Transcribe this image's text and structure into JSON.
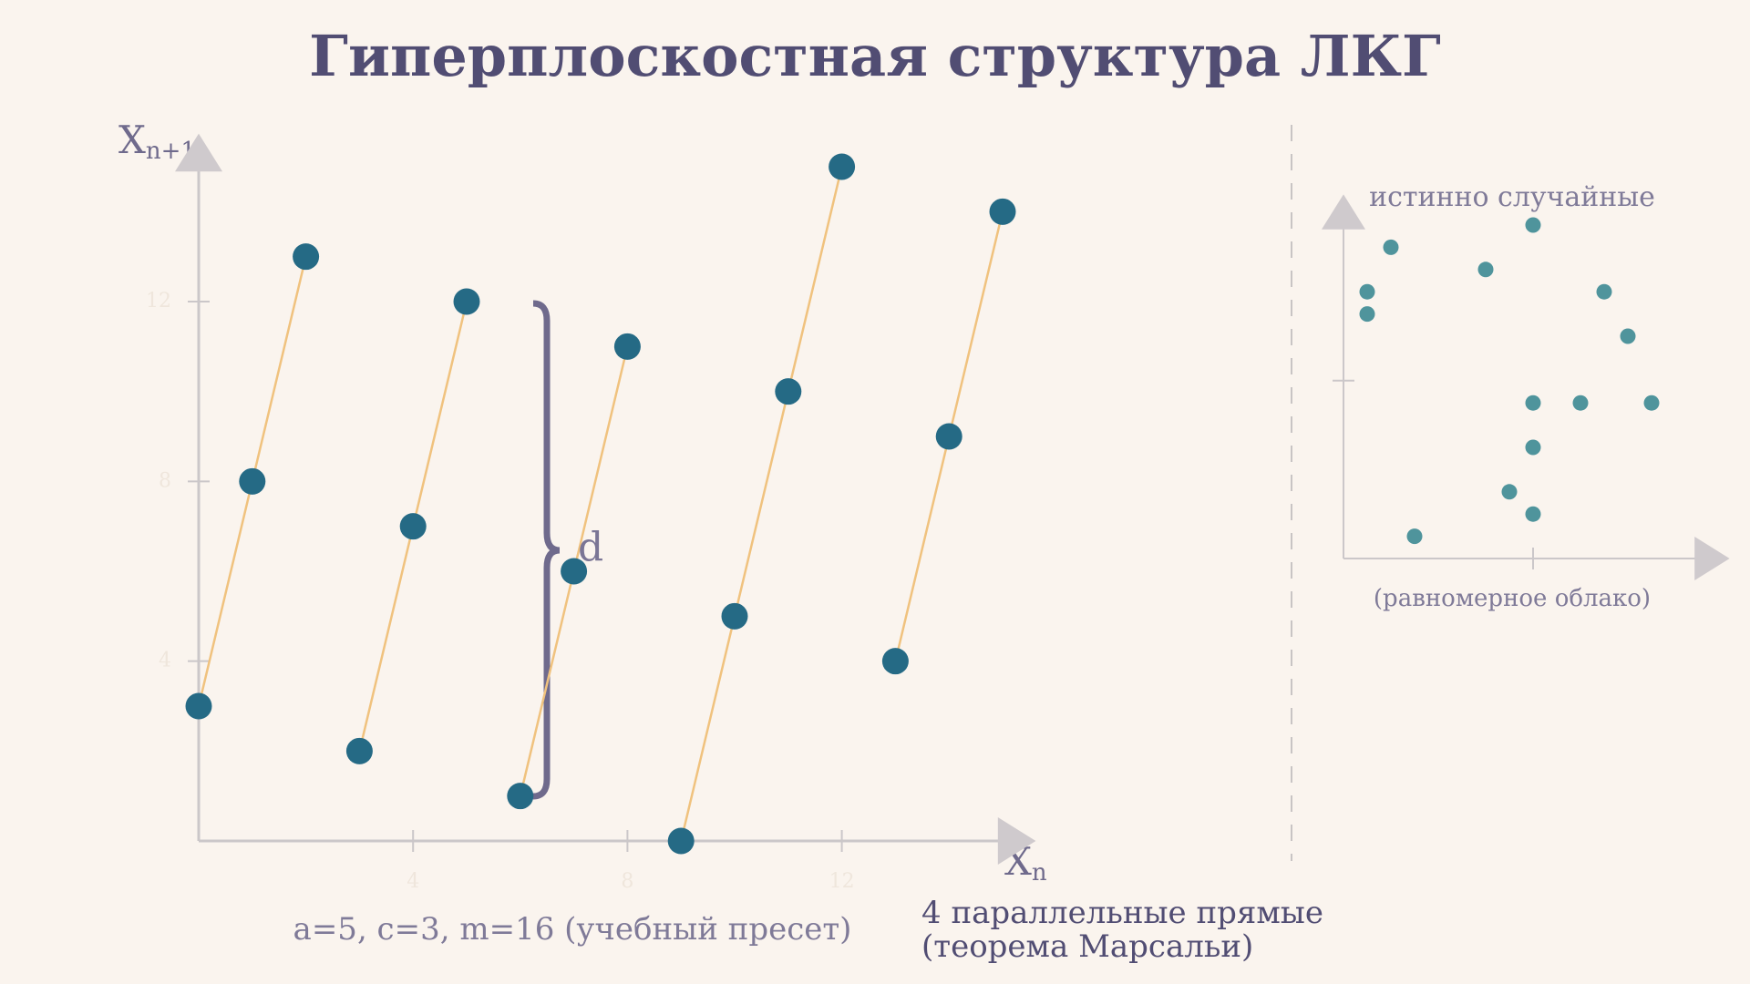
{
  "chart_data": [
    {
      "type": "scatter",
      "title": "Гиперплоскостная структура ЛКГ",
      "x_label": "X",
      "x_label_sub": "n",
      "y_label": "X",
      "y_label_sub": "n+1",
      "x": [
        0,
        1,
        2,
        3,
        4,
        5,
        6,
        7,
        8,
        9,
        10,
        11,
        12,
        13,
        14,
        15
      ],
      "values": [
        3,
        8,
        13,
        2,
        7,
        12,
        1,
        6,
        11,
        0,
        5,
        10,
        15,
        4,
        9,
        14
      ],
      "color": "#256a85",
      "line_color": "#f0c27e",
      "xlim": [
        0,
        15
      ],
      "ylim": [
        0,
        15
      ],
      "xticks": [
        4,
        8,
        12
      ],
      "yticks": [
        4,
        8,
        12
      ],
      "annotations": [
        "d",
        "a=5, c=3, m=16 (учебный пресет)",
        "4 параллельные прямые",
        "(теорема Марсальи)"
      ]
    },
    {
      "type": "scatter",
      "title": "истинно случайные",
      "caption": "(равномерное облако)",
      "x": [
        2,
        1,
        1,
        6,
        8,
        11,
        12,
        8,
        10,
        13,
        8,
        7,
        8,
        3
      ],
      "values": [
        14,
        12,
        11,
        13,
        15,
        12,
        10,
        7,
        7,
        7,
        5,
        3,
        2,
        1
      ],
      "color": "#4f949c",
      "xlim": [
        0,
        15
      ],
      "ylim": [
        0,
        15
      ],
      "xticks": [
        8
      ],
      "yticks": [
        8
      ]
    }
  ]
}
